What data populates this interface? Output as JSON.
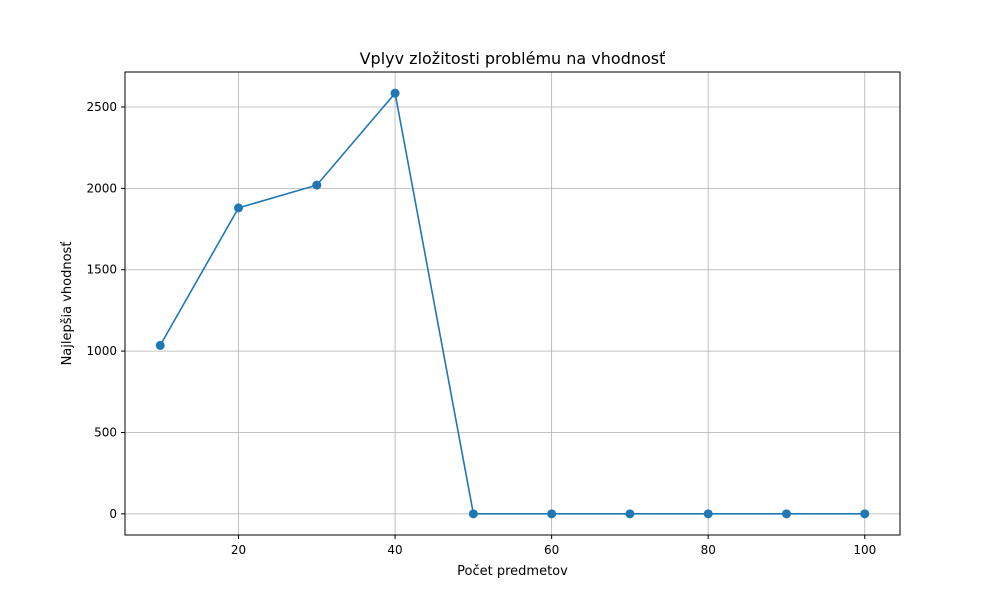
{
  "chart_data": {
    "type": "line",
    "title": "Vplyv zložitosti problému na vhodnosť",
    "xlabel": "Počet predmetov",
    "ylabel": "Najlepšia vhodnosť",
    "x": [
      10,
      20,
      30,
      40,
      50,
      60,
      70,
      80,
      90,
      100
    ],
    "series": [
      {
        "values": [
          1035,
          1880,
          2020,
          2585,
          0,
          0,
          0,
          0,
          0,
          0
        ],
        "color": "#1f77b4",
        "marker": "circle"
      }
    ],
    "xlim": [
      5.5,
      104.5
    ],
    "ylim": [
      -130,
      2715
    ],
    "xticks": [
      20,
      40,
      60,
      80,
      100
    ],
    "yticks": [
      0,
      500,
      1000,
      1500,
      2000,
      2500
    ],
    "grid": true,
    "legend": "none"
  },
  "colors": {
    "grid": "#b0b0b0",
    "axes": "#000000",
    "series": "#1f77b4"
  }
}
